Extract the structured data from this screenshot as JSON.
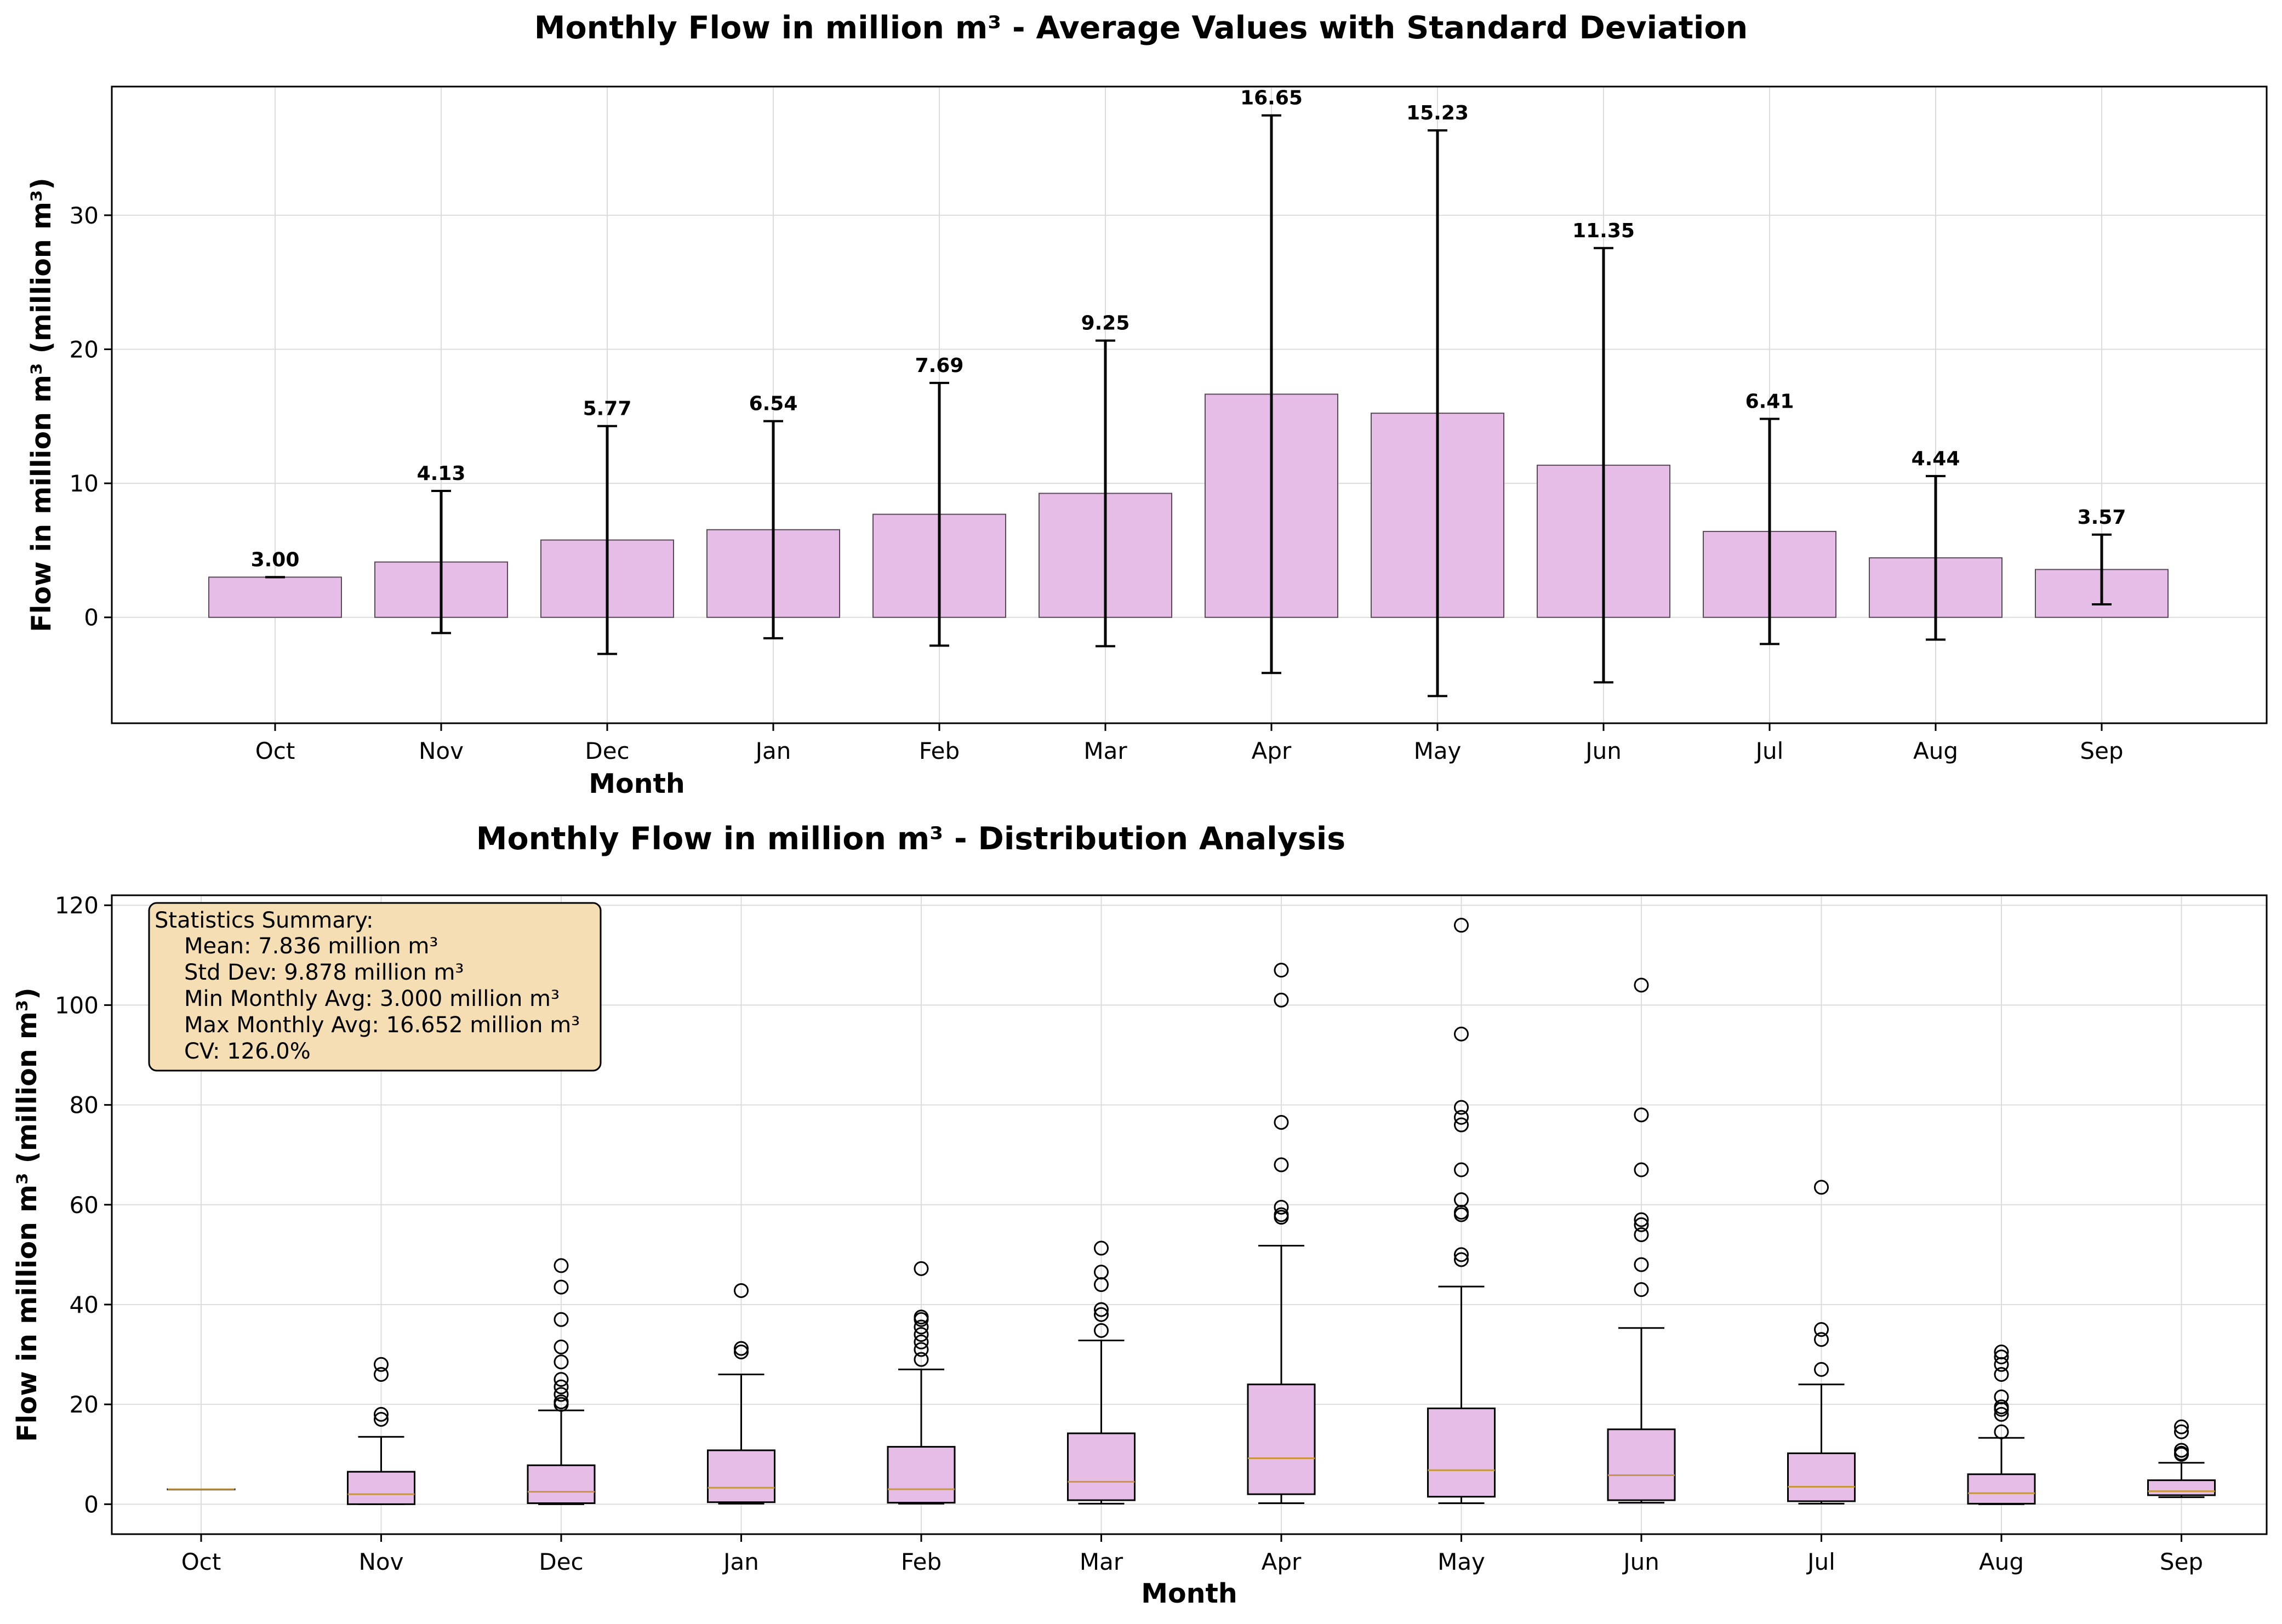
{
  "colors": {
    "bar_fill": "#e6bde6",
    "bar_edge": "#5a4a5a",
    "box_fill": "#e6bde6",
    "median": "#c8963c",
    "grid": "#dcdcdc",
    "stats_box_bg": "#f5deb3"
  },
  "chart_data": [
    {
      "type": "bar",
      "title": "Monthly Flow in million m³ - Average Values with Standard Deviation",
      "xlabel": "Month",
      "ylabel": "Flow in million m³ (million m³)",
      "categories": [
        "Oct",
        "Nov",
        "Dec",
        "Jan",
        "Feb",
        "Mar",
        "Apr",
        "May",
        "Jun",
        "Jul",
        "Aug",
        "Sep"
      ],
      "values": [
        3.0,
        4.13,
        5.77,
        6.54,
        7.69,
        9.25,
        16.65,
        15.23,
        11.35,
        6.41,
        4.44,
        3.57
      ],
      "value_labels": [
        "3.00",
        "4.13",
        "5.77",
        "6.54",
        "7.69",
        "9.25",
        "16.65",
        "15.23",
        "11.35",
        "6.41",
        "4.44",
        "3.57"
      ],
      "std_dev": [
        0.0,
        5.3,
        8.5,
        8.1,
        9.8,
        11.4,
        20.8,
        21.1,
        16.2,
        8.4,
        6.1,
        2.6
      ],
      "ylim": [
        -7.9,
        39.6
      ],
      "yticks": [
        0,
        10,
        20,
        30
      ],
      "grid": true
    },
    {
      "type": "box",
      "title": "Monthly Flow in million m³ - Distribution Analysis",
      "xlabel": "Month",
      "ylabel": "Flow in million m³ (million m³)",
      "categories": [
        "Oct",
        "Nov",
        "Dec",
        "Jan",
        "Feb",
        "Mar",
        "Apr",
        "May",
        "Jun",
        "Jul",
        "Aug",
        "Sep"
      ],
      "boxes": [
        {
          "whislo": 3.0,
          "q1": 3.0,
          "med": 3.0,
          "q3": 3.0,
          "whishi": 3.0,
          "fliers": []
        },
        {
          "whislo": 0.0,
          "q1": 0.0,
          "med": 2.0,
          "q3": 6.5,
          "whishi": 13.5,
          "fliers": [
            17.0,
            18.0,
            26.0,
            28.0
          ]
        },
        {
          "whislo": 0.0,
          "q1": 0.2,
          "med": 2.5,
          "q3": 7.8,
          "whishi": 18.8,
          "fliers": [
            20.0,
            20.5,
            22.0,
            23.5,
            25.0,
            28.5,
            31.5,
            37.0,
            43.5,
            47.8
          ]
        },
        {
          "whislo": 0.1,
          "q1": 0.4,
          "med": 3.3,
          "q3": 10.8,
          "whishi": 26.0,
          "fliers": [
            30.5,
            31.2,
            42.8
          ]
        },
        {
          "whislo": 0.1,
          "q1": 0.3,
          "med": 3.0,
          "q3": 11.5,
          "whishi": 27.0,
          "fliers": [
            29.0,
            31.0,
            32.5,
            34.0,
            35.5,
            37.0,
            37.5,
            47.2
          ]
        },
        {
          "whislo": 0.1,
          "q1": 0.8,
          "med": 4.5,
          "q3": 14.2,
          "whishi": 32.8,
          "fliers": [
            34.8,
            38.0,
            39.0,
            44.0,
            46.5,
            51.3
          ]
        },
        {
          "whislo": 0.2,
          "q1": 2.0,
          "med": 9.2,
          "q3": 24.0,
          "whishi": 51.8,
          "fliers": [
            57.5,
            58.0,
            59.5,
            68.0,
            76.5,
            101.0,
            107.0
          ]
        },
        {
          "whislo": 0.2,
          "q1": 1.5,
          "med": 6.8,
          "q3": 19.2,
          "whishi": 43.6,
          "fliers": [
            49.0,
            50.0,
            58.0,
            58.5,
            61.0,
            67.0,
            76.0,
            77.5,
            79.5,
            94.2,
            116.0
          ]
        },
        {
          "whislo": 0.3,
          "q1": 0.8,
          "med": 5.8,
          "q3": 15.0,
          "whishi": 35.3,
          "fliers": [
            43.0,
            48.0,
            54.0,
            56.0,
            57.0,
            67.0,
            78.0,
            104.0
          ]
        },
        {
          "whislo": 0.1,
          "q1": 0.6,
          "med": 3.5,
          "q3": 10.2,
          "whishi": 24.0,
          "fliers": [
            27.0,
            33.0,
            35.0,
            63.5
          ]
        },
        {
          "whislo": 0.0,
          "q1": 0.1,
          "med": 2.2,
          "q3": 6.0,
          "whishi": 13.3,
          "fliers": [
            14.5,
            18.0,
            19.0,
            19.5,
            21.5,
            26.0,
            28.0,
            29.5,
            30.5
          ]
        },
        {
          "whislo": 1.4,
          "q1": 1.8,
          "med": 2.6,
          "q3": 4.8,
          "whishi": 8.3,
          "fliers": [
            10.0,
            10.2,
            10.8,
            14.5,
            15.5
          ]
        }
      ],
      "ylim": [
        -6,
        122
      ],
      "yticks": [
        0,
        20,
        40,
        60,
        80,
        100,
        120
      ],
      "grid": true,
      "stats_box": {
        "heading": "Statistics Summary:",
        "lines": [
          "Mean: 7.836 million m³",
          "Std Dev: 9.878 million m³",
          "Min Monthly Avg: 3.000 million m³",
          "Max Monthly Avg: 16.652 million m³",
          "CV: 126.0%"
        ]
      }
    }
  ]
}
